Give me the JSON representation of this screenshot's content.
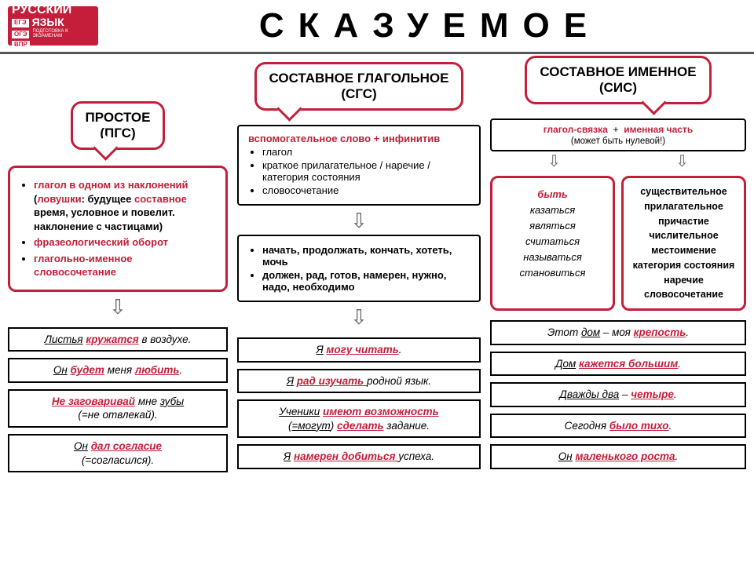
{
  "logo": {
    "brand": "РУССКИЙ",
    "line2": "ЯЗЫК",
    "sub": "ПОДГОТОВКА К ЭКЗАМЕНАМ",
    "ege": "ЕГЭ",
    "oge": "ОГЭ",
    "vpr": "ВПР"
  },
  "title": "СКАЗУЕМОЕ",
  "col1": {
    "bubble": "ПРОСТОЕ\n(ПГС)",
    "info_items": [
      {
        "pre": "глагол в одном из наклонений",
        "trap": true,
        "rest": "(ловушки: будущее составное время, условное и повелит. наклонение с частицами)"
      },
      {
        "pre": "фразеологический оборот",
        "trap": true
      },
      {
        "pre": "глагольно-именное словосочетание",
        "trap": true
      }
    ],
    "examples": [
      {
        "html": "<span class='u'>Листья</span> <span class='u r'>кружатся</span> в воздухе."
      },
      {
        "html": "<span class='u'>Он</span> <span class='u r'>будет</span> меня <span class='u r'>любить</span>."
      },
      {
        "html": "<span class='u r'>Не заговаривай</span> мне <span class='u'>зубы</span><br>(=не отвлекай)."
      },
      {
        "html": "<span class='u'>Он</span> <span class='u r'>дал согласие</span><br>(=согласился)."
      }
    ]
  },
  "col2": {
    "bubble": "СОСТАВНОЕ ГЛАГОЛЬНОЕ\n(СГС)",
    "aux_header": "вспомогательное слово + инфинитив",
    "aux_items": [
      "глагол",
      "краткое прилагательное / наречие / категория состояния",
      "словосочетание"
    ],
    "box2_items": [
      "начать, продолжать, кончать, хотеть, мочь",
      "должен, рад, готов, намерен, нужно, надо, необходимо"
    ],
    "examples": [
      {
        "html": "<span class='u'>Я</span> <span class='u r'>могу читать</span>."
      },
      {
        "html": "<span class='u'>Я</span> <span class='u r'>рад изучать </span>родной язык."
      },
      {
        "html": "<span class='u'>Ученики</span> <span class='u r'>имеют возможность</span><br>(<span class='u'>=могут</span>) <span class='u r'>сделать</span> задание."
      },
      {
        "html": "<span class='u'>Я</span> <span class='u r'>намерен добиться </span>успеха."
      }
    ]
  },
  "col3": {
    "bubble": "СОСТАВНОЕ ИМЕННОЕ\n(СИС)",
    "formula": {
      "a": "глагол-связка",
      "plus": "+",
      "b": "именная часть",
      "note": "(может быть нулевой!)"
    },
    "link_verbs": [
      "быть",
      "казаться",
      "являться",
      "считаться",
      "называться",
      "становиться"
    ],
    "nominal_parts": [
      "существительное",
      "прилагательное",
      "причастие",
      "числительное",
      "местоимение",
      "категория состояния",
      "наречие",
      "словосочетание"
    ],
    "examples": [
      {
        "html": "Этот <span class='u'>дом</span> – моя <span class='u r'>крепость</span>."
      },
      {
        "html": "<span class='u'>Дом</span> <span class='u r'>кажется большим</span>."
      },
      {
        "html": "<span class='u'>Дважды два</span> – <span class='u r'>четыре</span>."
      },
      {
        "html": "Сегодня <span class='u r'>было тихо</span>."
      },
      {
        "html": "<span class='u'>Он</span> <span class='u r'>маленького роста</span>."
      }
    ]
  },
  "colors": {
    "accent": "#c41e3a"
  }
}
